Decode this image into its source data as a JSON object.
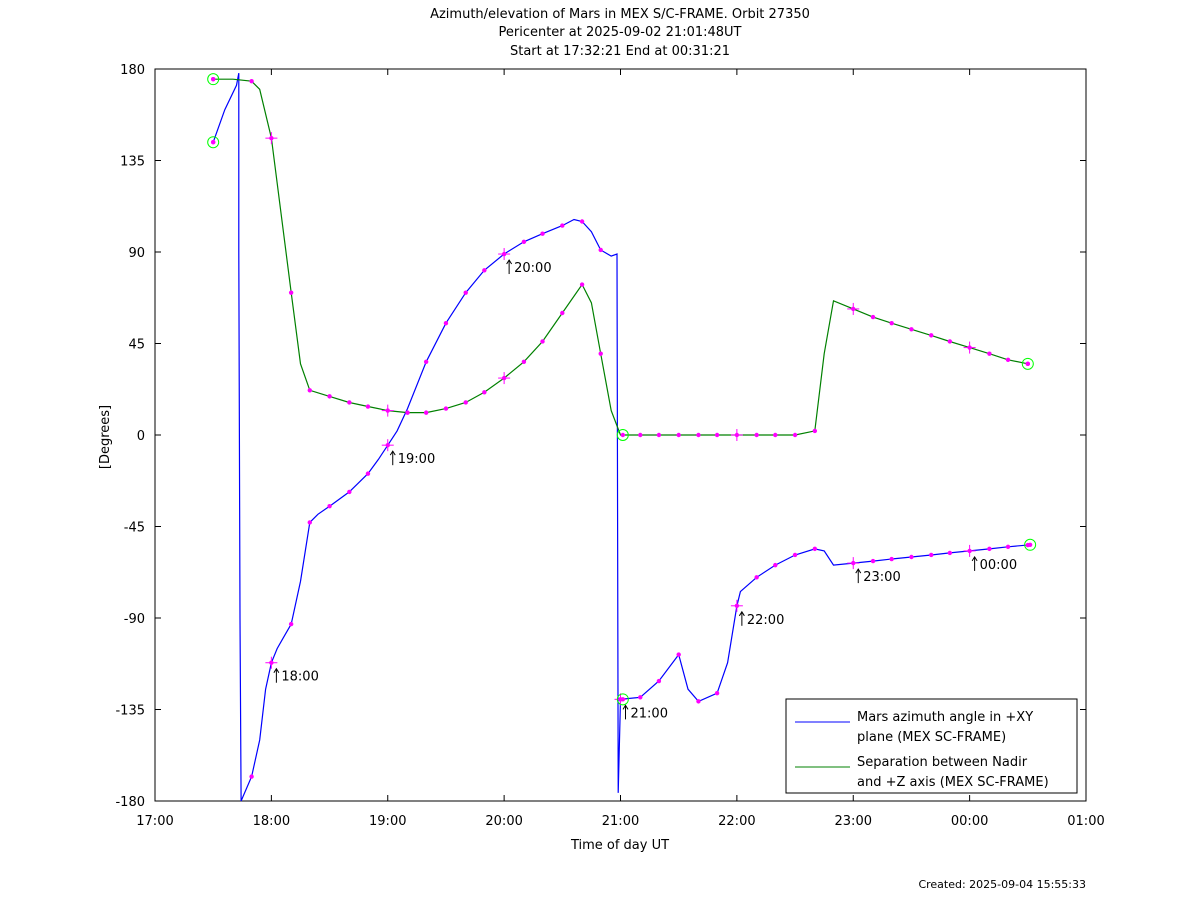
{
  "chart_data": {
    "type": "line",
    "title_lines": [
      "Azimuth/elevation of Mars in MEX S/C-FRAME.  Orbit 27350",
      "Pericenter at 2025-09-02 21:01:48UT",
      "Start at 17:32:21 End at 00:31:21"
    ],
    "xlabel": "Time of day UT",
    "ylabel": "[Degrees]",
    "xlim": [
      17.0,
      25.0
    ],
    "ylim": [
      -180,
      180
    ],
    "x_ticks": [
      {
        "value": 17,
        "label": "17:00"
      },
      {
        "value": 18,
        "label": "18:00"
      },
      {
        "value": 19,
        "label": "19:00"
      },
      {
        "value": 20,
        "label": "20:00"
      },
      {
        "value": 21,
        "label": "21:00"
      },
      {
        "value": 22,
        "label": "22:00"
      },
      {
        "value": 23,
        "label": "23:00"
      },
      {
        "value": 24,
        "label": "00:00"
      },
      {
        "value": 25,
        "label": "01:00"
      }
    ],
    "y_ticks": [
      {
        "value": 180,
        "label": "180"
      },
      {
        "value": 135,
        "label": "135"
      },
      {
        "value": 90,
        "label": "90"
      },
      {
        "value": 45,
        "label": "45"
      },
      {
        "value": 0,
        "label": "0"
      },
      {
        "value": -45,
        "label": "-45"
      },
      {
        "value": -90,
        "label": "-90"
      },
      {
        "value": -135,
        "label": "-135"
      },
      {
        "value": -180,
        "label": "-180"
      }
    ],
    "series": [
      {
        "name": "Mars azimuth angle in +XY plane (MEX SC-FRAME)",
        "legend_lines": [
          "Mars azimuth angle in +XY",
          "plane (MEX SC-FRAME)"
        ],
        "color": "#0000ff",
        "points": [
          [
            17.5,
            144
          ],
          [
            17.6,
            160
          ],
          [
            17.7,
            172
          ],
          [
            17.72,
            178
          ],
          [
            17.72,
            90
          ],
          [
            17.73,
            -90
          ],
          [
            17.74,
            -180
          ],
          [
            17.83,
            -168
          ],
          [
            17.9,
            -150
          ],
          [
            17.95,
            -125
          ],
          [
            18.0,
            -112
          ],
          [
            18.05,
            -105
          ],
          [
            18.1,
            -100
          ],
          [
            18.17,
            -93
          ],
          [
            18.25,
            -72
          ],
          [
            18.33,
            -43
          ],
          [
            18.4,
            -39
          ],
          [
            18.5,
            -35
          ],
          [
            18.67,
            -28
          ],
          [
            18.83,
            -19
          ],
          [
            18.92,
            -12
          ],
          [
            19.0,
            -5
          ],
          [
            19.08,
            2
          ],
          [
            19.17,
            13
          ],
          [
            19.33,
            36
          ],
          [
            19.5,
            55
          ],
          [
            19.67,
            70
          ],
          [
            19.83,
            81
          ],
          [
            20.0,
            89
          ],
          [
            20.17,
            95
          ],
          [
            20.33,
            99
          ],
          [
            20.5,
            103
          ],
          [
            20.6,
            106
          ],
          [
            20.67,
            105
          ],
          [
            20.75,
            100
          ],
          [
            20.83,
            91
          ],
          [
            20.92,
            88
          ],
          [
            20.97,
            89
          ],
          [
            20.98,
            -176
          ],
          [
            21.0,
            -130
          ],
          [
            21.17,
            -129
          ],
          [
            21.33,
            -121
          ],
          [
            21.5,
            -108
          ],
          [
            21.58,
            -125
          ],
          [
            21.67,
            -131
          ],
          [
            21.83,
            -127
          ],
          [
            21.92,
            -112
          ],
          [
            22.0,
            -84
          ],
          [
            22.03,
            -77
          ],
          [
            22.17,
            -70
          ],
          [
            22.33,
            -64
          ],
          [
            22.5,
            -59
          ],
          [
            22.67,
            -56
          ],
          [
            22.75,
            -57
          ],
          [
            22.83,
            -64
          ],
          [
            23.0,
            -63
          ],
          [
            23.17,
            -62
          ],
          [
            23.33,
            -61
          ],
          [
            23.5,
            -60
          ],
          [
            23.67,
            -59
          ],
          [
            23.83,
            -58
          ],
          [
            24.0,
            -57
          ],
          [
            24.17,
            -56
          ],
          [
            24.33,
            -55
          ],
          [
            24.52,
            -54
          ]
        ]
      },
      {
        "name": "Separation between Nadir and +Z axis (MEX SC-FRAME)",
        "legend_lines": [
          "Separation between Nadir",
          "and +Z axis (MEX SC-FRAME)"
        ],
        "color": "#008000",
        "points": [
          [
            17.5,
            175
          ],
          [
            17.67,
            175
          ],
          [
            17.83,
            174
          ],
          [
            17.9,
            170
          ],
          [
            18.0,
            146
          ],
          [
            18.17,
            70
          ],
          [
            18.25,
            35
          ],
          [
            18.33,
            22
          ],
          [
            18.5,
            19
          ],
          [
            18.67,
            16
          ],
          [
            18.83,
            14
          ],
          [
            19.0,
            12
          ],
          [
            19.17,
            11
          ],
          [
            19.33,
            11
          ],
          [
            19.5,
            13
          ],
          [
            19.67,
            16
          ],
          [
            19.83,
            21
          ],
          [
            20.0,
            28
          ],
          [
            20.17,
            36
          ],
          [
            20.33,
            46
          ],
          [
            20.5,
            60
          ],
          [
            20.67,
            74
          ],
          [
            20.75,
            65
          ],
          [
            20.83,
            40
          ],
          [
            20.92,
            12
          ],
          [
            21.0,
            0
          ],
          [
            21.17,
            0
          ],
          [
            21.33,
            0
          ],
          [
            21.5,
            0
          ],
          [
            21.67,
            0
          ],
          [
            21.83,
            0
          ],
          [
            22.0,
            0
          ],
          [
            22.17,
            0
          ],
          [
            22.33,
            0
          ],
          [
            22.5,
            0
          ],
          [
            22.67,
            2
          ],
          [
            22.75,
            40
          ],
          [
            22.83,
            66
          ],
          [
            23.0,
            62
          ],
          [
            23.17,
            58
          ],
          [
            23.33,
            55
          ],
          [
            23.5,
            52
          ],
          [
            23.67,
            49
          ],
          [
            23.83,
            46
          ],
          [
            24.0,
            43
          ],
          [
            24.17,
            40
          ],
          [
            24.33,
            37
          ],
          [
            24.5,
            35
          ]
        ]
      }
    ],
    "dot_markers": [
      {
        "series": 0,
        "x": [
          17.5,
          17.83,
          18.17,
          18.33,
          18.5,
          18.67,
          18.83,
          19.33,
          19.5,
          19.67,
          19.83,
          20.17,
          20.33,
          20.5,
          20.67,
          20.83,
          21.17,
          21.33,
          21.5,
          21.67,
          21.83,
          22.17,
          22.33,
          22.5,
          22.67,
          23.17,
          23.33,
          23.5,
          23.67,
          23.83,
          24.17,
          24.33,
          24.5
        ]
      },
      {
        "series": 1,
        "x": [
          17.5,
          17.83,
          18.17,
          18.33,
          18.5,
          18.67,
          18.83,
          19.17,
          19.33,
          19.5,
          19.67,
          19.83,
          20.17,
          20.33,
          20.5,
          20.67,
          20.83,
          21.17,
          21.33,
          21.5,
          21.67,
          21.83,
          22.17,
          22.33,
          22.5,
          22.67,
          23.17,
          23.33,
          23.5,
          23.67,
          23.83,
          24.17,
          24.33,
          24.5
        ]
      }
    ],
    "hour_markers": [
      {
        "x": 18.0,
        "y": -112,
        "label": "18:00"
      },
      {
        "x": 19.0,
        "y": -5,
        "label": "19:00"
      },
      {
        "x": 20.0,
        "y": 89,
        "label": "20:00"
      },
      {
        "x": 21.0,
        "y": -130,
        "label": "21:00"
      },
      {
        "x": 22.0,
        "y": -84,
        "label": "22:00"
      },
      {
        "x": 23.0,
        "y": -63,
        "label": "23:00"
      },
      {
        "x": 24.0,
        "y": -57,
        "label": "00:00"
      }
    ],
    "hour_crosses_green": [
      {
        "x": 18.0,
        "y": 146
      },
      {
        "x": 19.0,
        "y": 12
      },
      {
        "x": 20.0,
        "y": 28
      },
      {
        "x": 22.0,
        "y": 0
      },
      {
        "x": 23.0,
        "y": 62
      },
      {
        "x": 24.0,
        "y": 43
      }
    ],
    "circle_markers": [
      {
        "x": 17.5,
        "y": 144
      },
      {
        "x": 17.5,
        "y": 175
      },
      {
        "x": 21.02,
        "y": 0
      },
      {
        "x": 21.02,
        "y": -130
      },
      {
        "x": 24.5,
        "y": 35
      },
      {
        "x": 24.52,
        "y": -54
      }
    ],
    "legend_position": "bottom-right",
    "grid": false
  },
  "footer": {
    "created": "Created: 2025-09-04 15:55:33"
  },
  "colors": {
    "azimuth": "#0000ff",
    "separation": "#008000",
    "markers": "#ff00ff",
    "circles": "#00ff00"
  }
}
